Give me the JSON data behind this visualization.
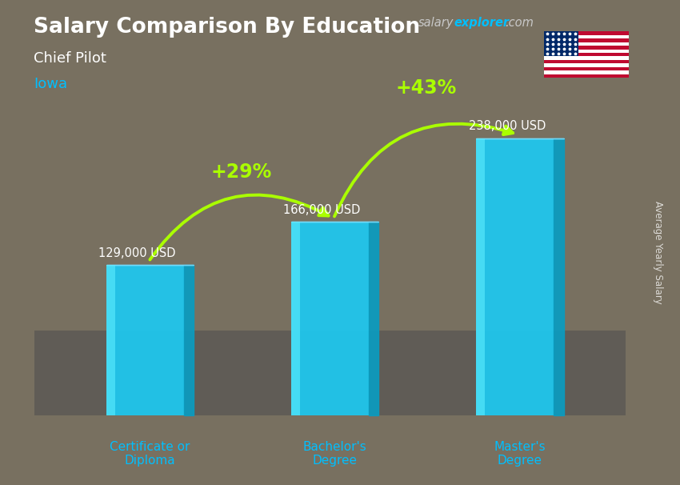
{
  "title": "Salary Comparison By Education",
  "subtitle": "Chief Pilot",
  "location": "Iowa",
  "categories": [
    "Certificate or\nDiploma",
    "Bachelor's\nDegree",
    "Master's\nDegree"
  ],
  "values": [
    129000,
    166000,
    238000
  ],
  "value_labels": [
    "129,000 USD",
    "166,000 USD",
    "238,000 USD"
  ],
  "bar_color_main": "#1EC8F0",
  "bar_color_right": "#0A9CC0",
  "bar_color_top": "#7ADEFD",
  "bar_color_highlight": "#5EEEFF",
  "pct_changes": [
    "+29%",
    "+43%"
  ],
  "pct_color": "#AAFF00",
  "bg_top": "#8a8a7a",
  "bg_mid": "#7a7060",
  "bg_bot": "#505050",
  "title_color": "#FFFFFF",
  "subtitle_color": "#FFFFFF",
  "location_color": "#00BFFF",
  "value_label_color": "#FFFFFF",
  "xlabel_color": "#00BFFF",
  "ylabel_text": "Average Yearly Salary",
  "ylabel_color": "#FFFFFF",
  "salary_color": "#C8C8C8",
  "explorer_color": "#00BFFF",
  "com_color": "#C8C8C8",
  "ylim": [
    0,
    290000
  ],
  "bar_width": 0.42,
  "bar_gap": 1.0,
  "x_positions": [
    0.5,
    1.5,
    2.5
  ]
}
